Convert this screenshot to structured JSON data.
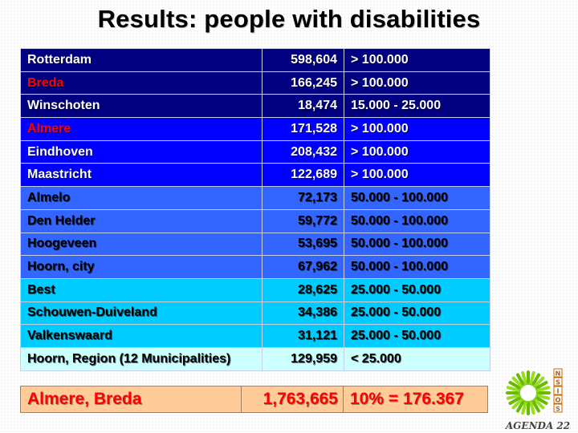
{
  "title": "Results: people with disabilities",
  "rows": [
    {
      "name": "Rotterdam",
      "population": "598,604",
      "range": "> 100.000",
      "band": "dark",
      "highlight": false
    },
    {
      "name": "Breda",
      "population": "166,245",
      "range": "> 100.000",
      "band": "dark",
      "highlight": true
    },
    {
      "name": "Winschoten",
      "population": "18,474",
      "range": "15.000 - 25.000",
      "band": "dark",
      "highlight": false
    },
    {
      "name": "Almere",
      "population": "171,528",
      "range": "> 100.000",
      "band": "bright",
      "highlight": true
    },
    {
      "name": "Eindhoven",
      "population": "208,432",
      "range": "> 100.000",
      "band": "bright",
      "highlight": false
    },
    {
      "name": "Maastricht",
      "population": "122,689",
      "range": "> 100.000",
      "band": "bright",
      "highlight": false
    },
    {
      "name": "Almelo",
      "population": "72,173",
      "range": "50.000 - 100.000",
      "band": "medium",
      "highlight": false
    },
    {
      "name": "Den Helder",
      "population": "59,772",
      "range": "50.000 - 100.000",
      "band": "medium",
      "highlight": false
    },
    {
      "name": "Hoogeveen",
      "population": "53,695",
      "range": "50.000 - 100.000",
      "band": "medium",
      "highlight": false
    },
    {
      "name": "Hoorn, city",
      "population": "67,962",
      "range": "50.000 - 100.000",
      "band": "medium",
      "highlight": false
    },
    {
      "name": "Best",
      "population": "28,625",
      "range": "25.000 - 50.000",
      "band": "cyan",
      "highlight": false
    },
    {
      "name": "Schouwen-Duiveland",
      "population": "34,386",
      "range": "25.000 - 50.000",
      "band": "cyan",
      "highlight": false
    },
    {
      "name": "Valkenswaard",
      "population": "31,121",
      "range": "25.000 - 50.000",
      "band": "cyan",
      "highlight": false
    },
    {
      "name": "Hoorn, Region (12 Municipalities)",
      "population": "129,959",
      "range": "< 25.000",
      "band": "pale",
      "highlight": false
    }
  ],
  "bands": {
    "dark": {
      "bg": "#000080",
      "fg": "#ffffff"
    },
    "bright": {
      "bg": "#0000ff",
      "fg": "#ffffff"
    },
    "medium": {
      "bg": "#3366ff",
      "fg": "#000000"
    },
    "cyan": {
      "bg": "#00ccff",
      "fg": "#000000"
    },
    "pale": {
      "bg": "#ccffff",
      "fg": "#000000"
    }
  },
  "highlight_color": "#ff0000",
  "summary": {
    "name": "Almere, Breda",
    "population": "1,763,665",
    "calc": "10% = 176.367"
  },
  "logo": {
    "icon": "sun-flower-icon",
    "letters": [
      "N",
      "S",
      "I",
      "O",
      "S"
    ],
    "text": "AGENDA 22"
  }
}
